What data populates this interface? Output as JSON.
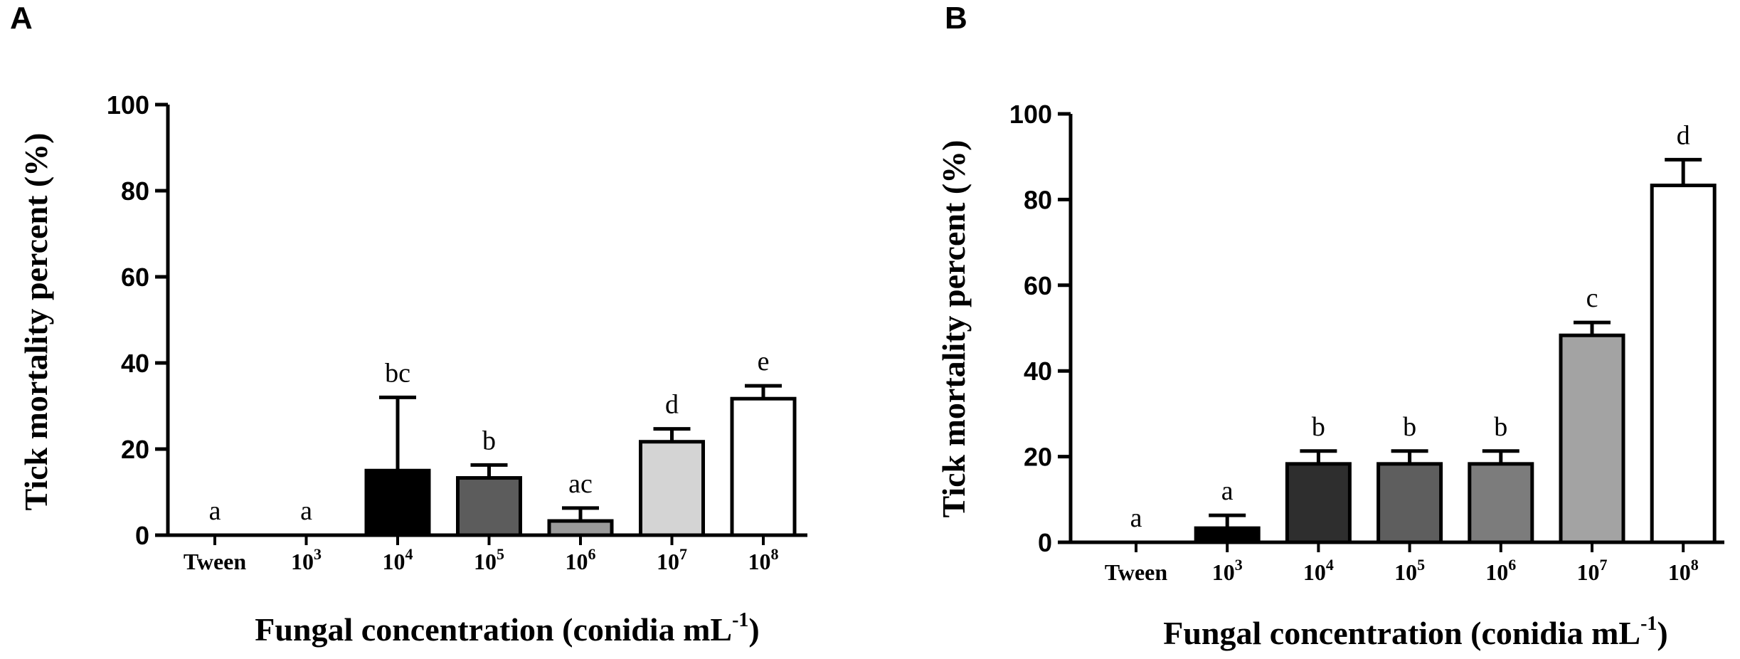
{
  "chart_data": [
    {
      "type": "bar",
      "panel": "A",
      "ylabel": "Tick mortality percent (%)",
      "xlabel": {
        "text": "Fungal concentration (conidia mL",
        "sup": "-1",
        "close": ")"
      },
      "ylim": [
        0,
        100
      ],
      "yticks": [
        "0",
        "20",
        "40",
        "60",
        "80",
        "100"
      ],
      "categories": [
        {
          "base": "Tween",
          "sup": ""
        },
        {
          "base": "10",
          "sup": "3"
        },
        {
          "base": "10",
          "sup": "4"
        },
        {
          "base": "10",
          "sup": "5"
        },
        {
          "base": "10",
          "sup": "6"
        },
        {
          "base": "10",
          "sup": "7"
        },
        {
          "base": "10",
          "sup": "8"
        }
      ],
      "values": [
        0,
        0,
        15,
        13.3,
        3.3,
        21.7,
        31.7
      ],
      "errors": [
        0,
        0,
        17,
        3,
        3,
        3,
        3
      ],
      "significance": [
        "a",
        "a",
        "bc",
        "b",
        "ac",
        "d",
        "e"
      ],
      "colors": [
        "#ffffff",
        "#ffffff",
        "#000000",
        "#5c5c5c",
        "#9a9a9a",
        "#d4d4d4",
        "#ffffff"
      ]
    },
    {
      "type": "bar",
      "panel": "B",
      "ylabel": "Tick mortality percent (%)",
      "xlabel": {
        "text": "Fungal concentration (conidia mL",
        "sup": "-1",
        "close": ")"
      },
      "ylim": [
        0,
        100
      ],
      "yticks": [
        "0",
        "20",
        "40",
        "60",
        "80",
        "100"
      ],
      "categories": [
        {
          "base": "Tween",
          "sup": ""
        },
        {
          "base": "10",
          "sup": "3"
        },
        {
          "base": "10",
          "sup": "4"
        },
        {
          "base": "10",
          "sup": "5"
        },
        {
          "base": "10",
          "sup": "6"
        },
        {
          "base": "10",
          "sup": "7"
        },
        {
          "base": "10",
          "sup": "8"
        }
      ],
      "values": [
        0,
        3.3,
        18.3,
        18.3,
        18.3,
        48.3,
        83.3
      ],
      "errors": [
        0,
        3,
        3,
        3,
        3,
        3,
        6
      ],
      "significance": [
        "a",
        "a",
        "b",
        "b",
        "b",
        "c",
        "d"
      ],
      "colors": [
        "#ffffff",
        "#000000",
        "#2e2e2e",
        "#5e5e5e",
        "#7c7c7c",
        "#a3a3a3",
        "#ffffff"
      ]
    }
  ]
}
